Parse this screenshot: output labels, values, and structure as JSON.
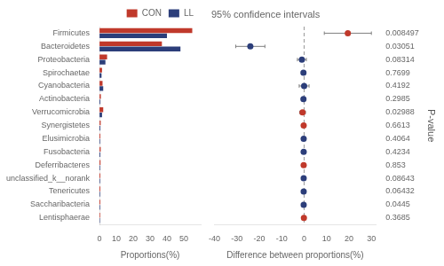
{
  "chart_data": [
    {
      "type": "bar",
      "orientation": "horizontal",
      "categories": [
        "Firmicutes",
        "Bacteroidetes",
        "Proteobacteria",
        "Spirochaetae",
        "Cyanobacteria",
        "Actinobacteria",
        "Verrucomicrobia",
        "Synergistetes",
        "Elusimicrobia",
        "Fusobacteria",
        "Deferribacteres",
        "unclassified_k__norank",
        "Tenericutes",
        "Saccharibacteria",
        "Lentisphaerae"
      ],
      "series": [
        {
          "name": "CON",
          "color": "#c0392b",
          "values": [
            55.0,
            37.0,
            4.5,
            1.5,
            1.8,
            0.8,
            2.2,
            0.7,
            0.5,
            0.7,
            0.6,
            0.5,
            0.5,
            0.5,
            0.4
          ]
        },
        {
          "name": "LL",
          "color": "#2c3e7a",
          "values": [
            40.0,
            48.0,
            3.5,
            1.2,
            2.2,
            0.5,
            1.5,
            0.5,
            0.4,
            0.5,
            0.4,
            0.4,
            0.4,
            0.4,
            0.3
          ]
        }
      ],
      "xlabel": "Proportions(%)",
      "xlim": [
        0,
        60
      ],
      "xticks": [
        0,
        10,
        20,
        30,
        40,
        50
      ],
      "grid": false,
      "legend": "upper right"
    },
    {
      "type": "dot",
      "title": "95% confidence intervals",
      "values": [
        19.5,
        -24.0,
        -1.0,
        -0.3,
        0.0,
        -0.3,
        -0.7,
        -0.2,
        -0.2,
        -0.2,
        -0.2,
        -0.2,
        -0.2,
        -0.2,
        -0.1
      ],
      "ci_low": [
        9.0,
        -30.5,
        -3.0,
        -1.2,
        -2.2,
        -1.2,
        -2.0,
        -0.8,
        -0.8,
        -0.8,
        -0.7,
        -0.7,
        -0.7,
        -0.7,
        -0.6
      ],
      "ci_high": [
        30.0,
        -17.5,
        1.0,
        0.6,
        2.2,
        0.6,
        0.6,
        0.4,
        0.4,
        0.4,
        0.3,
        0.3,
        0.3,
        0.3,
        0.4
      ],
      "colors": [
        "#c0392b",
        "#2c3e7a",
        "#2c3e7a",
        "#2c3e7a",
        "#2c3e7a",
        "#2c3e7a",
        "#c0392b",
        "#c0392b",
        "#2c3e7a",
        "#2c3e7a",
        "#c0392b",
        "#2c3e7a",
        "#2c3e7a",
        "#2c3e7a",
        "#c0392b"
      ],
      "p_values": [
        0.008497,
        0.03051,
        0.08314,
        0.7699,
        0.4192,
        0.2985,
        0.02988,
        0.6613,
        0.4064,
        0.4234,
        0.853,
        0.08643,
        0.06432,
        0.0445,
        0.3685
      ],
      "y2label": "P-value",
      "xlabel": "Difference between proportions(%)",
      "xlim": [
        -40,
        32
      ],
      "xticks": [
        -40,
        -30,
        -20,
        -10,
        0,
        10,
        20,
        30
      ],
      "reference_line": 0,
      "grid": false
    }
  ]
}
